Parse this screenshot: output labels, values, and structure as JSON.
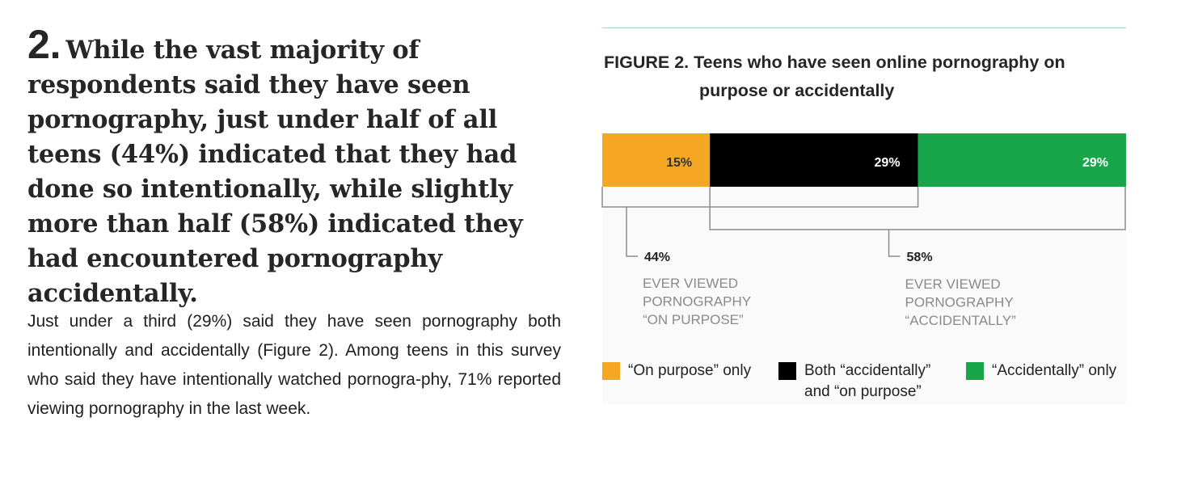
{
  "lead": {
    "number": "2.",
    "text": "While the vast majority of respondents said they have seen pornography, just under half of all teens (44%) indicated that they had done so intentionally, while slightly more than half (58%) indicated they had encountered pornography accidentally."
  },
  "body": "Just under a third (29%) said they have seen pornography both intentionally and accidentally (Figure 2). Among teens in this survey who said they have intentionally watched pornogra-phy, 71% reported viewing pornography in the last week.",
  "figure": {
    "title_line1": "FIGURE 2. Teens who have seen online pornography on",
    "title_line2": "purpose or accidentally"
  },
  "chart_data": {
    "type": "bar",
    "orientation": "horizontal-stacked",
    "series": [
      {
        "name": "“On purpose” only",
        "value": 15,
        "label": "15%",
        "color": "#f5a623",
        "label_color": "#333333"
      },
      {
        "name": "Both “accidentally” and “on purpose”",
        "value": 29,
        "label": "29%",
        "color": "#000000",
        "label_color": "#ffffff"
      },
      {
        "name": "“Accidentally” only",
        "value": 29,
        "label": "29%",
        "color": "#19a64b",
        "label_color": "#ffffff"
      }
    ],
    "annotations": [
      {
        "value": "44%",
        "caption": [
          "EVER VIEWED",
          "PORNOGRAPHY",
          "“ON PURPOSE”"
        ],
        "spans": [
          0,
          1
        ]
      },
      {
        "value": "58%",
        "caption": [
          "EVER VIEWED",
          "PORNOGRAPHY",
          "“ACCIDENTALLY”"
        ],
        "spans": [
          1,
          2
        ]
      }
    ],
    "legend": [
      {
        "label": "“On purpose” only",
        "color": "#f5a623"
      },
      {
        "label_line1": "Both “accidentally”",
        "label_line2": "and “on purpose”",
        "color": "#000000"
      },
      {
        "label": "“Accidentally” only",
        "color": "#19a64b"
      }
    ],
    "legend_position": "bottom"
  }
}
